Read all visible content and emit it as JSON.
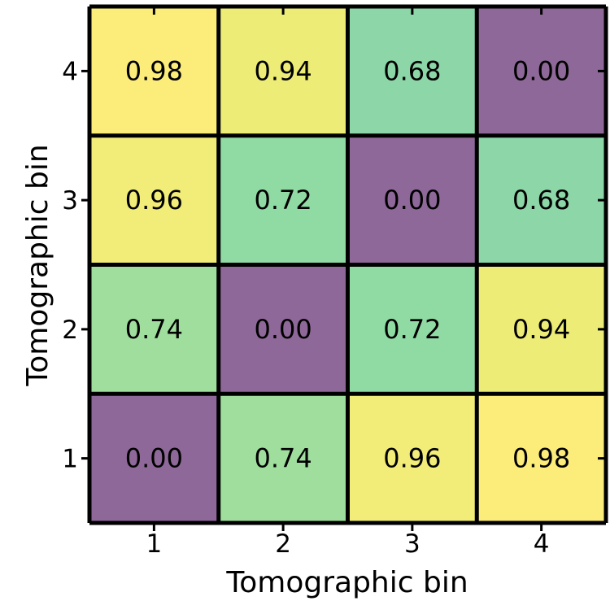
{
  "chart_data": {
    "type": "heatmap",
    "title": "",
    "xlabel": "Tomographic bin",
    "ylabel": "Tomographic bin",
    "x_categories": [
      "1",
      "2",
      "3",
      "4"
    ],
    "y_categories": [
      "1",
      "2",
      "3",
      "4"
    ],
    "values": [
      [
        0.0,
        0.74,
        0.96,
        0.98
      ],
      [
        0.74,
        0.0,
        0.72,
        0.94
      ],
      [
        0.96,
        0.72,
        0.0,
        0.68
      ],
      [
        0.98,
        0.94,
        0.68,
        0.0
      ]
    ],
    "value_format": "0.00",
    "colormap": "viridis",
    "grid": false,
    "legend": "none"
  }
}
